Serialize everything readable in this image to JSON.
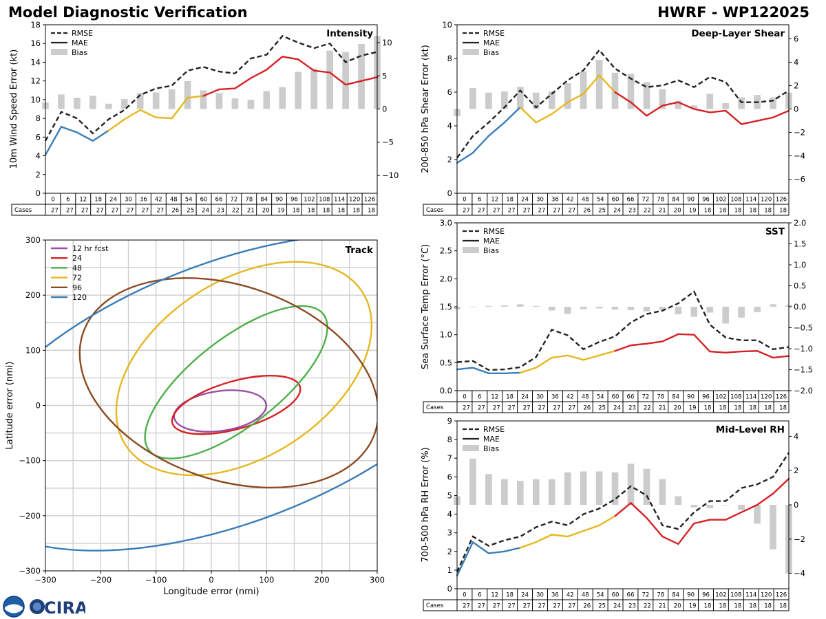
{
  "header": {
    "title": "Model Diagnostic Verification",
    "storm": "HWRF - WP122025"
  },
  "logo": {
    "text": "CIRA",
    "agency_icon": "noaa-logo-icon"
  },
  "colors": {
    "rmse": "#222222",
    "bias": "#cccccc",
    "seg_blue": "#3a7db8",
    "seg_yellow": "#e6b71e",
    "seg_red": "#d62124",
    "track": {
      "12 hr fcst": "#984ea3",
      "24": "#d62124",
      "48": "#4daf4a",
      "72": "#e6b71e",
      "96": "#8b4a22",
      "120": "#3a7db8"
    }
  },
  "common": {
    "hours": [
      "0",
      "6",
      "12",
      "18",
      "24",
      "30",
      "36",
      "42",
      "48",
      "54",
      "60",
      "66",
      "72",
      "78",
      "84",
      "90",
      "96",
      "102",
      "108",
      "114",
      "120",
      "126"
    ],
    "cases_label": "Cases",
    "legend": [
      "RMSE",
      "MAE",
      "Bias"
    ]
  },
  "chart_data": [
    {
      "id": "intensity",
      "type": "line",
      "title": "Intensity",
      "ylabel": "10m Wind Speed Error (kt)",
      "ylim": [
        0,
        18
      ],
      "yticks": [
        0,
        2,
        4,
        6,
        8,
        10,
        12,
        14,
        16,
        18
      ],
      "y2lim": [
        -12.7,
        12.7
      ],
      "y2ticks": [
        -10,
        -5,
        0,
        5,
        10
      ],
      "x": [
        0,
        6,
        12,
        18,
        24,
        30,
        36,
        42,
        48,
        54,
        60,
        66,
        72,
        78,
        84,
        90,
        96,
        102,
        108,
        114,
        120,
        126
      ],
      "rmse": [
        5.6,
        8.7,
        8.0,
        6.4,
        7.9,
        8.9,
        10.5,
        11.2,
        11.5,
        13.1,
        13.5,
        13.0,
        12.8,
        14.4,
        14.8,
        16.8,
        16.1,
        15.5,
        16.0,
        14.0,
        14.7,
        15.1
      ],
      "mae": [
        4.1,
        7.1,
        6.5,
        5.6,
        6.7,
        7.9,
        8.9,
        8.1,
        8.0,
        10.2,
        10.4,
        11.1,
        11.2,
        12.3,
        13.2,
        14.6,
        14.3,
        13.1,
        12.9,
        11.6,
        12.0,
        12.4
      ],
      "bias": [
        1.0,
        2.2,
        1.7,
        2.0,
        0.8,
        1.5,
        2.4,
        2.5,
        3.0,
        4.2,
        2.8,
        2.4,
        1.6,
        1.4,
        2.7,
        3.3,
        5.6,
        6.1,
        8.8,
        8.6,
        9.8,
        11.0
      ],
      "cases": [
        27,
        27,
        27,
        27,
        27,
        27,
        27,
        27,
        26,
        25,
        24,
        23,
        22,
        21,
        20,
        19,
        18,
        18,
        18,
        18,
        18,
        18
      ]
    },
    {
      "id": "shear",
      "type": "line",
      "title": "Deep-Layer Shear",
      "ylabel": "200-850 hPa Shear Error (kt)",
      "ylim": [
        0,
        10
      ],
      "yticks": [
        0,
        2,
        4,
        6,
        8,
        10
      ],
      "y2lim": [
        -7.2,
        7.2
      ],
      "y2ticks": [
        -6,
        -4,
        -2,
        0,
        2,
        4,
        6
      ],
      "x": [
        0,
        6,
        12,
        18,
        24,
        30,
        36,
        42,
        48,
        54,
        60,
        66,
        72,
        78,
        84,
        90,
        96,
        102,
        108,
        114,
        120,
        126
      ],
      "rmse": [
        2.1,
        3.4,
        4.2,
        5.1,
        6.1,
        5.1,
        5.9,
        6.7,
        7.3,
        8.5,
        7.4,
        6.8,
        6.3,
        6.4,
        6.7,
        6.3,
        6.9,
        6.6,
        5.4,
        5.4,
        5.5,
        6.1
      ],
      "mae": [
        1.8,
        2.4,
        3.4,
        4.2,
        5.1,
        4.2,
        4.7,
        5.4,
        5.9,
        7.0,
        6.0,
        5.4,
        4.6,
        5.2,
        5.4,
        5.0,
        4.8,
        4.9,
        4.1,
        4.3,
        4.5,
        4.9
      ],
      "bias": [
        -0.6,
        1.8,
        1.4,
        1.5,
        1.9,
        1.4,
        1.5,
        2.2,
        3.2,
        4.2,
        3.1,
        3.0,
        2.3,
        1.7,
        0.7,
        0.3,
        1.3,
        0.5,
        1.0,
        1.2,
        1.0,
        1.4
      ],
      "cases": [
        27,
        27,
        27,
        27,
        27,
        27,
        27,
        27,
        26,
        25,
        24,
        23,
        22,
        21,
        20,
        19,
        18,
        18,
        18,
        18,
        18,
        18
      ]
    },
    {
      "id": "sst",
      "type": "line",
      "title": "SST",
      "ylabel": "Sea Surface Temp Error (°C)",
      "ylim": [
        0,
        3
      ],
      "yticks": [
        0.0,
        0.5,
        1.0,
        1.5,
        2.0,
        2.5,
        3.0
      ],
      "y2lim": [
        -2.0,
        2.0
      ],
      "y2ticks": [
        -2.0,
        -1.5,
        -1.0,
        -0.5,
        0.0,
        0.5,
        1.0,
        1.5,
        2.0
      ],
      "x": [
        0,
        6,
        12,
        18,
        24,
        30,
        36,
        42,
        48,
        54,
        60,
        66,
        72,
        78,
        84,
        90,
        96,
        102,
        108,
        114,
        120,
        126
      ],
      "rmse": [
        0.51,
        0.53,
        0.37,
        0.38,
        0.42,
        0.6,
        1.09,
        0.99,
        0.74,
        0.87,
        0.97,
        1.22,
        1.37,
        1.43,
        1.56,
        1.77,
        1.18,
        0.95,
        0.9,
        0.9,
        0.74,
        0.78
      ],
      "mae": [
        0.38,
        0.41,
        0.31,
        0.31,
        0.32,
        0.41,
        0.59,
        0.63,
        0.55,
        0.63,
        0.71,
        0.81,
        0.84,
        0.88,
        1.01,
        1.0,
        0.7,
        0.68,
        0.7,
        0.71,
        0.59,
        0.62
      ],
      "bias": [
        -0.06,
        0.0,
        0.02,
        0.03,
        0.06,
        0.02,
        -0.09,
        -0.17,
        -0.06,
        -0.04,
        -0.07,
        -0.08,
        -0.11,
        -0.08,
        -0.18,
        -0.24,
        -0.14,
        -0.4,
        -0.26,
        -0.13,
        0.06,
        0.04
      ],
      "cases": [
        27,
        27,
        27,
        27,
        27,
        27,
        27,
        27,
        26,
        25,
        24,
        23,
        22,
        21,
        20,
        19,
        18,
        18,
        18,
        18,
        18,
        18
      ]
    },
    {
      "id": "rh",
      "type": "line",
      "title": "Mid-Level RH",
      "ylabel": "700-500 hPa RH Error (%)",
      "ylim": [
        0,
        9
      ],
      "yticks": [
        0,
        1,
        2,
        3,
        4,
        5,
        6,
        7,
        8,
        9
      ],
      "y2lim": [
        -4.9,
        4.9
      ],
      "y2ticks": [
        -4,
        -2,
        0,
        2,
        4
      ],
      "x": [
        0,
        6,
        12,
        18,
        24,
        30,
        36,
        42,
        48,
        54,
        60,
        66,
        72,
        78,
        84,
        90,
        96,
        102,
        108,
        114,
        120,
        126
      ],
      "rmse": [
        0.9,
        2.8,
        2.3,
        2.6,
        2.8,
        3.3,
        3.6,
        3.4,
        4.0,
        4.3,
        4.8,
        5.5,
        5.0,
        3.4,
        3.2,
        4.1,
        4.7,
        4.7,
        5.4,
        5.6,
        6.0,
        7.3
      ],
      "mae": [
        0.7,
        2.5,
        1.9,
        2.0,
        2.2,
        2.5,
        2.9,
        2.8,
        3.1,
        3.4,
        3.9,
        4.6,
        3.8,
        2.8,
        2.4,
        3.5,
        3.7,
        3.7,
        4.1,
        4.5,
        5.1,
        5.9
      ],
      "bias": [
        0.5,
        2.7,
        1.8,
        1.5,
        1.4,
        1.5,
        1.5,
        1.9,
        1.95,
        1.95,
        1.9,
        2.4,
        2.1,
        1.5,
        0.5,
        -0.15,
        -0.2,
        0.0,
        -0.3,
        -1.1,
        -2.6,
        -4.0
      ],
      "cases": [
        27,
        27,
        27,
        27,
        27,
        27,
        27,
        27,
        26,
        25,
        24,
        23,
        22,
        21,
        20,
        19,
        18,
        18,
        18,
        18,
        18,
        18
      ]
    },
    {
      "id": "track",
      "type": "scatter",
      "title": "Track",
      "xlabel": "Longitude error (nmi)",
      "ylabel": "Latitude error (nmi)",
      "xlim": [
        -300,
        300
      ],
      "ylim": [
        -300,
        300
      ],
      "xticks": [
        -300,
        -200,
        -100,
        0,
        100,
        200,
        300
      ],
      "yticks": [
        -300,
        -200,
        -100,
        0,
        100,
        200,
        300
      ],
      "grid": true,
      "legend_position": "top-left",
      "ellipses": [
        {
          "name": "12 hr fcst",
          "cx": 16,
          "cy": -10,
          "rx": 84,
          "ry": 36,
          "angle": 8
        },
        {
          "name": "24",
          "cx": 45,
          "cy": 1,
          "rx": 120,
          "ry": 43,
          "angle": 16
        },
        {
          "name": "48",
          "cx": 45,
          "cy": 42,
          "rx": 200,
          "ry": 79,
          "angle": 38
        },
        {
          "name": "72",
          "cx": 59,
          "cy": 67,
          "rx": 255,
          "ry": 160,
          "angle": 33
        },
        {
          "name": "96",
          "cx": 32,
          "cy": 41,
          "rx": 279,
          "ry": 176,
          "angle": -19
        },
        {
          "name": "120",
          "cx": 35,
          "cy": 24,
          "rx": 515,
          "ry": 235,
          "angle": 21
        }
      ]
    }
  ]
}
